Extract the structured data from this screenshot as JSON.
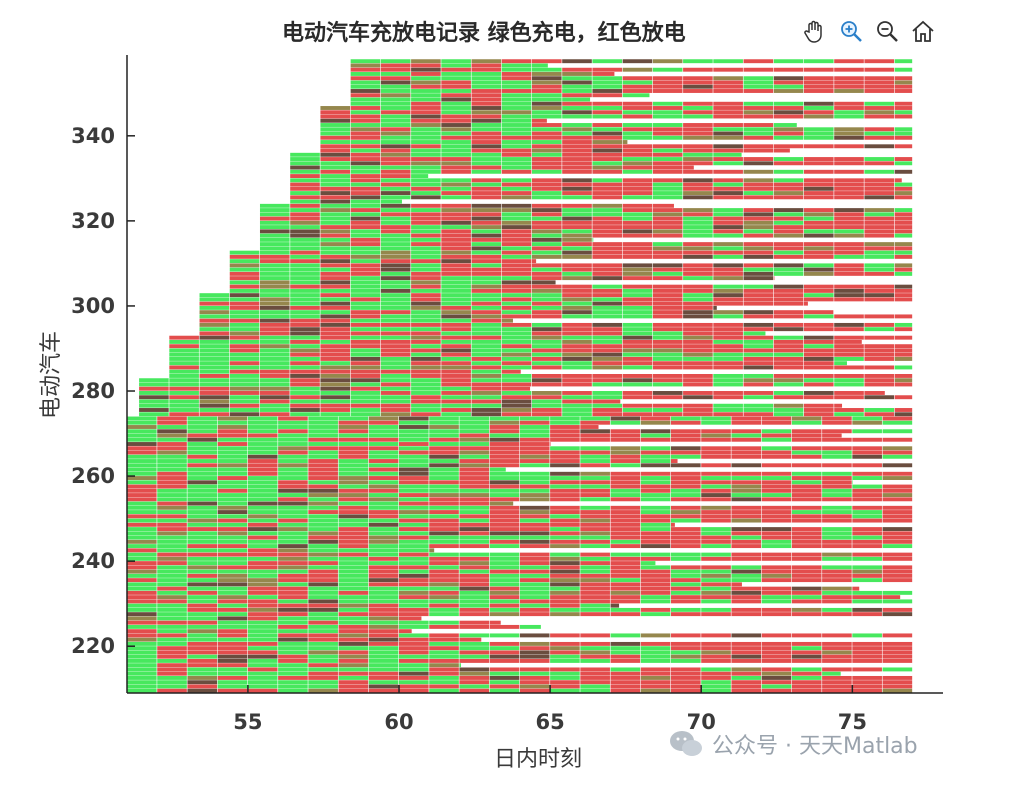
{
  "chart_data": {
    "type": "heatmap",
    "title": "电动汽车充放电记录  绿色充电，红色放电",
    "xlabel": "日内时刻",
    "ylabel": "电动汽车",
    "xlim": [
      51,
      78
    ],
    "ylim": [
      209,
      359
    ],
    "xticks": [
      55,
      60,
      65,
      70,
      75
    ],
    "yticks": [
      220,
      240,
      260,
      280,
      300,
      320,
      340
    ],
    "legend": {
      "charge": "绿色充电",
      "discharge": "红色放电"
    },
    "colors": {
      "charge": "#33e64d",
      "discharge": "#e03a3a",
      "mixed": "#8a7a3a",
      "dark": "#5a3a2a"
    },
    "grid": false,
    "description_rows": "rows of vehicle records from y≈210 to y≈358; each vehicle starts at an arrival time that grows with vehicle index and extends right to about x=77",
    "staircase_starts": [
      {
        "y_top": 274,
        "x_start": 51.0
      },
      {
        "y_top": 283,
        "x_start": 51.4
      },
      {
        "y_top": 293,
        "x_start": 52.4
      },
      {
        "y_top": 303,
        "x_start": 53.4
      },
      {
        "y_top": 313,
        "x_start": 54.4
      },
      {
        "y_top": 324,
        "x_start": 55.4
      },
      {
        "y_top": 336,
        "x_start": 56.4
      },
      {
        "y_top": 347,
        "x_start": 57.4
      },
      {
        "y_top": 358,
        "x_start": 58.4
      }
    ],
    "x_end_default": 77
  },
  "toolbar": {
    "pan_icon": "hand-icon",
    "zoom_in_icon": "zoom-in-icon",
    "zoom_out_icon": "zoom-out-icon",
    "home_icon": "home-icon"
  },
  "watermark": {
    "text": "公众号 · 天天Matlab"
  }
}
